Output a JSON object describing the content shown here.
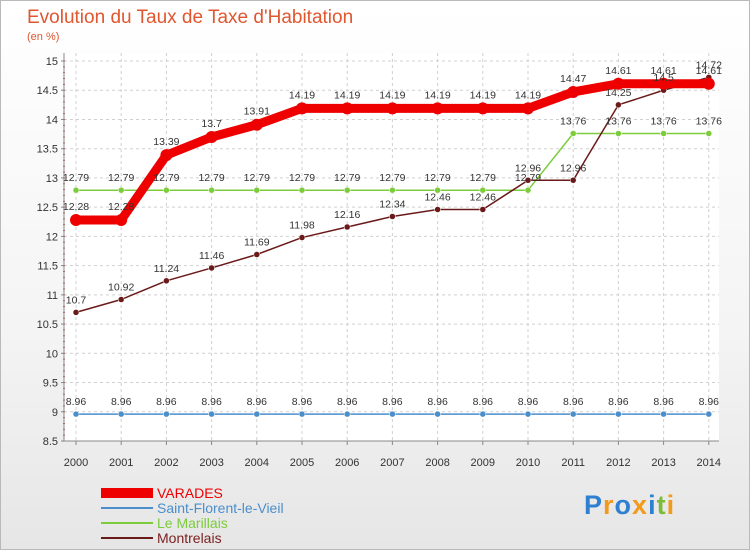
{
  "header": {
    "title": "Evolution du Taux de Taxe d'Habitation",
    "unit": "(en %)"
  },
  "logo": {
    "text": "Proxiti",
    "colors": [
      "#2f80d0",
      "#f29a1b",
      "#2f80d0",
      "#f29a1b",
      "#2f80d0",
      "#7cbc3a",
      "#f29a1b"
    ]
  },
  "chart_data": {
    "type": "line",
    "categories": [
      "2000",
      "2001",
      "2002",
      "2003",
      "2004",
      "2005",
      "2006",
      "2007",
      "2008",
      "2009",
      "2010",
      "2011",
      "2012",
      "2013",
      "2014"
    ],
    "ylim": [
      8.5,
      15
    ],
    "yticks": [
      "8.5",
      "9",
      "9.5",
      "10",
      "10.5",
      "11",
      "11.5",
      "12",
      "12.5",
      "13",
      "13.5",
      "14",
      "14.5",
      "15"
    ],
    "grid": true,
    "legend_position": "bottom-left",
    "series": [
      {
        "name": "VARADES",
        "color": "#ee0000",
        "values": [
          12.28,
          12.28,
          13.39,
          13.7,
          13.91,
          14.19,
          14.19,
          14.19,
          14.19,
          14.19,
          14.19,
          14.47,
          14.61,
          14.61,
          14.61
        ],
        "labels": [
          "12.28",
          "12.28",
          "13.39",
          "13.7",
          "13.91",
          "14.19",
          "14.19",
          "14.19",
          "14.19",
          "14.19",
          "14.19",
          "14.47",
          "14.61",
          "14.61",
          "14.61"
        ]
      },
      {
        "name": "Saint-Florent-le-Vieil",
        "color": "#4a8ecb",
        "values": [
          8.96,
          8.96,
          8.96,
          8.96,
          8.96,
          8.96,
          8.96,
          8.96,
          8.96,
          8.96,
          8.96,
          8.96,
          8.96,
          8.96,
          8.96
        ],
        "labels": [
          "8.96",
          "8.96",
          "8.96",
          "8.96",
          "8.96",
          "8.96",
          "8.96",
          "8.96",
          "8.96",
          "8.96",
          "8.96",
          "8.96",
          "8.96",
          "8.96",
          "8.96"
        ]
      },
      {
        "name": "Le Marillais",
        "color": "#7ccc3c",
        "values": [
          12.79,
          12.79,
          12.79,
          12.79,
          12.79,
          12.79,
          12.79,
          12.79,
          12.79,
          12.79,
          12.79,
          13.76,
          13.76,
          13.76,
          13.76
        ],
        "labels": [
          "12.79",
          "12.79",
          "12.79",
          "12.79",
          "12.79",
          "12.79",
          "12.79",
          "12.79",
          "12.79",
          "12.79",
          "12.79",
          "13.76",
          "13.76",
          "13.76",
          "13.76"
        ]
      },
      {
        "name": "Montrelais",
        "color": "#6b1a1a",
        "values": [
          10.7,
          10.92,
          11.24,
          11.46,
          11.69,
          11.98,
          12.16,
          12.34,
          12.46,
          12.46,
          12.96,
          12.96,
          14.25,
          14.5,
          14.72
        ],
        "labels": [
          "10.7",
          "10.92",
          "11.24",
          "11.46",
          "11.69",
          "11.98",
          "12.16",
          "12.34",
          "12.46",
          "12.46",
          "12.96",
          "12.96",
          "14.25",
          "14.5",
          "14.72"
        ]
      }
    ]
  }
}
